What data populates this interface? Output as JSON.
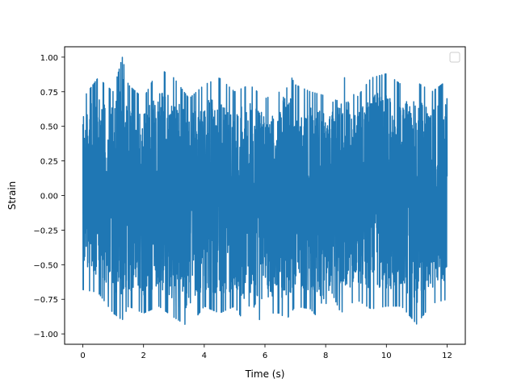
{
  "chart_data": {
    "type": "line",
    "title": "",
    "xlabel": "Time (s)",
    "ylabel": "Strain",
    "xlim": [
      -0.6,
      12.6
    ],
    "ylim": [
      -1.075,
      1.075
    ],
    "x_ticks": [
      0,
      2,
      4,
      6,
      8,
      10,
      12
    ],
    "x_tick_labels": [
      "0",
      "2",
      "4",
      "6",
      "8",
      "10",
      "12"
    ],
    "y_ticks": [
      -1.0,
      -0.75,
      -0.5,
      -0.25,
      0.0,
      0.25,
      0.5,
      0.75,
      1.0
    ],
    "y_tick_labels": [
      "−1.00",
      "−0.75",
      "−0.50",
      "−0.25",
      "0.00",
      "0.25",
      "0.50",
      "0.75",
      "1.00"
    ],
    "grid": false,
    "legend": {
      "placement": "top-right",
      "entries": []
    },
    "series": [
      {
        "color": "#1f77b4",
        "x_range": [
          0,
          12
        ],
        "description": "dense noise signal bounded approximately within ±1",
        "envelope": {
          "x": [
            0.0,
            0.5,
            1.0,
            1.3,
            1.5,
            2.0,
            2.5,
            3.0,
            3.5,
            4.0,
            4.5,
            5.0,
            5.5,
            6.0,
            6.5,
            6.7,
            7.0,
            7.5,
            8.0,
            8.2,
            8.5,
            9.0,
            9.5,
            10.0,
            10.5,
            11.0,
            11.5,
            12.0
          ],
          "max": [
            0.7,
            0.85,
            0.75,
            1.0,
            0.8,
            0.7,
            0.92,
            0.85,
            0.7,
            0.8,
            0.85,
            0.75,
            0.8,
            0.7,
            0.75,
            0.93,
            0.8,
            0.75,
            0.72,
            0.8,
            0.9,
            0.7,
            0.85,
            0.88,
            0.8,
            0.82,
            0.75,
            0.83
          ],
          "min": [
            -0.68,
            -0.7,
            -0.85,
            -0.9,
            -0.8,
            -0.85,
            -0.8,
            -0.88,
            -0.95,
            -0.8,
            -0.85,
            -0.8,
            -0.98,
            -0.85,
            -0.85,
            -0.9,
            -0.8,
            -0.82,
            -0.95,
            -0.7,
            -0.85,
            -0.75,
            -0.82,
            -0.8,
            -0.8,
            -0.93,
            -0.78,
            -0.75
          ]
        }
      }
    ]
  }
}
